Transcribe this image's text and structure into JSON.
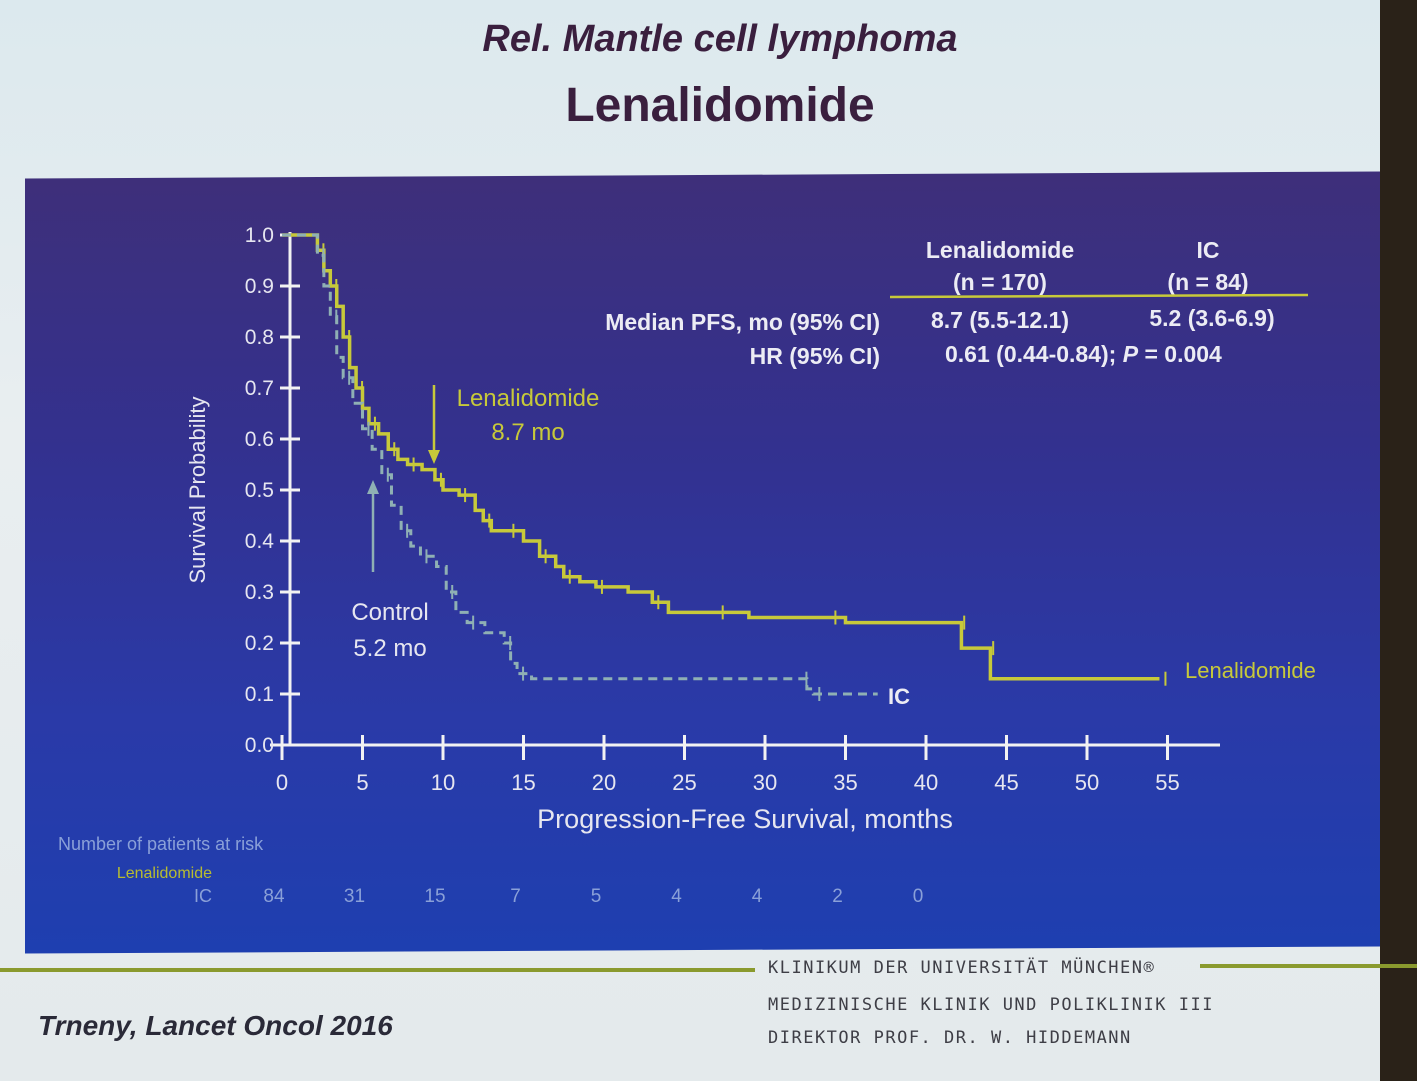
{
  "slide": {
    "title": "Rel. Mantle cell lymphoma",
    "subtitle": "Lenalidomide",
    "citation": "Trneny, Lancet Oncol 2016",
    "footer": {
      "line1": "KLINIKUM DER UNIVERSITÄT MÜNCHEN®",
      "line2": "MEDIZINISCHE KLINIK UND POLIKLINIK III",
      "line3": "DIREKTOR PROF. DR. W. HIDDEMANN"
    }
  },
  "stats_table": {
    "col1_header": "Lenalidomide",
    "col1_n": "(n = 170)",
    "col2_header": "IC",
    "col2_n": "(n = 84)",
    "row1_label": "Median PFS, mo (95% CI)",
    "row1_col1": "8.7 (5.5-12.1)",
    "row1_col2": "5.2 (3.6-6.9)",
    "row2_label": "HR (95% CI)",
    "row2_value_pre": "0.61 (0.44-0.84); ",
    "row2_value_p": "P",
    "row2_value_post": " = 0.004"
  },
  "annotations": {
    "len_label": "Lenalidomide",
    "len_value": "8.7 mo",
    "ctrl_label": "Control",
    "ctrl_value": "5.2 mo",
    "ic_end_label": "IC",
    "len_end_label": "Lenalidomide"
  },
  "risk_table": {
    "title": "Number of patients at risk",
    "row_len_label": "Lenalidomide",
    "row_ic_label": "IC",
    "ic_counts": [
      {
        "x": 0,
        "label": "84"
      },
      {
        "x": 5,
        "label": "31"
      },
      {
        "x": 10,
        "label": "15"
      },
      {
        "x": 15,
        "label": "7"
      },
      {
        "x": 20,
        "label": "5"
      },
      {
        "x": 25,
        "label": "4"
      },
      {
        "x": 30,
        "label": "4"
      },
      {
        "x": 35,
        "label": "2"
      },
      {
        "x": 40,
        "label": "0"
      }
    ]
  },
  "chart_data": {
    "type": "line",
    "title": "",
    "xlabel": "Progression-Free Survival, months",
    "ylabel": "Survival Probability",
    "xlim": [
      0,
      58
    ],
    "ylim": [
      0,
      1.0
    ],
    "x_ticks": [
      0,
      5,
      10,
      15,
      20,
      25,
      30,
      35,
      40,
      45,
      50,
      55
    ],
    "y_ticks": [
      "0.0",
      "0.1",
      "0.2",
      "0.3",
      "0.4",
      "0.5",
      "0.6",
      "0.7",
      "0.8",
      "0.9",
      "1.0"
    ],
    "grid": false,
    "colors": {
      "Lenalidomide": "#c7c93a",
      "IC": "#8fb0b4"
    },
    "series": [
      {
        "name": "Lenalidomide",
        "style": "solid",
        "points": [
          [
            0,
            1.0
          ],
          [
            1.8,
            1.0
          ],
          [
            2.2,
            0.97
          ],
          [
            2.6,
            0.93
          ],
          [
            3.0,
            0.9
          ],
          [
            3.4,
            0.86
          ],
          [
            3.8,
            0.8
          ],
          [
            4.2,
            0.74
          ],
          [
            4.6,
            0.7
          ],
          [
            5.0,
            0.66
          ],
          [
            5.4,
            0.63
          ],
          [
            6.0,
            0.61
          ],
          [
            6.6,
            0.58
          ],
          [
            7.2,
            0.56
          ],
          [
            7.8,
            0.55
          ],
          [
            8.7,
            0.54
          ],
          [
            9.5,
            0.52
          ],
          [
            10.0,
            0.5
          ],
          [
            11.0,
            0.49
          ],
          [
            12.0,
            0.46
          ],
          [
            12.5,
            0.44
          ],
          [
            13.0,
            0.42
          ],
          [
            14.0,
            0.42
          ],
          [
            15.0,
            0.4
          ],
          [
            16.0,
            0.37
          ],
          [
            17.0,
            0.35
          ],
          [
            17.5,
            0.33
          ],
          [
            18.5,
            0.32
          ],
          [
            19.5,
            0.31
          ],
          [
            21.5,
            0.3
          ],
          [
            23.0,
            0.28
          ],
          [
            24.0,
            0.26
          ],
          [
            27.0,
            0.26
          ],
          [
            29.0,
            0.25
          ],
          [
            34.0,
            0.25
          ],
          [
            35.0,
            0.24
          ],
          [
            42.0,
            0.24
          ],
          [
            42.2,
            0.19
          ],
          [
            43.8,
            0.19
          ],
          [
            44.0,
            0.13
          ],
          [
            54.5,
            0.13
          ]
        ]
      },
      {
        "name": "IC",
        "style": "dashed",
        "points": [
          [
            0,
            1.0
          ],
          [
            1.8,
            1.0
          ],
          [
            2.2,
            0.96
          ],
          [
            2.6,
            0.9
          ],
          [
            3.0,
            0.84
          ],
          [
            3.4,
            0.76
          ],
          [
            3.8,
            0.72
          ],
          [
            4.4,
            0.67
          ],
          [
            5.0,
            0.62
          ],
          [
            5.6,
            0.58
          ],
          [
            6.2,
            0.53
          ],
          [
            6.8,
            0.47
          ],
          [
            7.4,
            0.42
          ],
          [
            8.0,
            0.39
          ],
          [
            8.6,
            0.37
          ],
          [
            9.6,
            0.35
          ],
          [
            10.2,
            0.3
          ],
          [
            10.8,
            0.26
          ],
          [
            11.5,
            0.24
          ],
          [
            12.6,
            0.22
          ],
          [
            13.8,
            0.2
          ],
          [
            14.2,
            0.16
          ],
          [
            14.6,
            0.14
          ],
          [
            15.5,
            0.13
          ],
          [
            32.2,
            0.13
          ],
          [
            32.6,
            0.11
          ],
          [
            33.0,
            0.1
          ],
          [
            37.0,
            0.1
          ]
        ]
      }
    ],
    "annotations": [
      {
        "text": "Lenalidomide 8.7 mo",
        "x": 8.7,
        "y": 0.54,
        "arrow": "down"
      },
      {
        "text": "Control 5.2 mo",
        "x": 5.2,
        "y": 0.5,
        "arrow": "up"
      }
    ]
  }
}
